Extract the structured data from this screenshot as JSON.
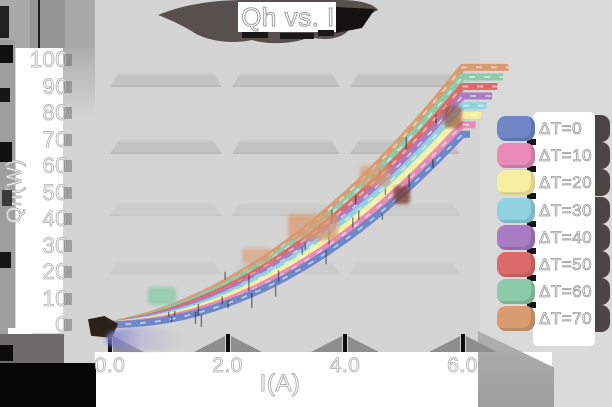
{
  "title": "Qh vs. I",
  "axes": {
    "x": {
      "label": "I(A)",
      "tick_labels": [
        "0.0",
        "2.0",
        "4.0",
        "6.0"
      ]
    },
    "y": {
      "label": "Qh(W)",
      "tick_labels": [
        "0",
        "10",
        "20",
        "30",
        "40",
        "50",
        "60",
        "70",
        "80",
        "90",
        "100"
      ]
    }
  },
  "chart_data": {
    "type": "line",
    "title": "Qh vs. I",
    "xlabel": "I(A)",
    "ylabel": "Qh(W)",
    "xlim": [
      0,
      6.4
    ],
    "ylim": [
      0,
      100
    ],
    "xticks": [
      0.0,
      2.0,
      4.0,
      6.0
    ],
    "yticks": [
      0,
      10,
      20,
      30,
      40,
      50,
      60,
      70,
      80,
      90,
      100
    ],
    "legend_position": "right",
    "grid": "horizontal-bands",
    "x": [
      0,
      0.5,
      1,
      1.5,
      2,
      2.5,
      3,
      3.5,
      4,
      4.5,
      5,
      5.5,
      6
    ],
    "series": [
      {
        "name": "ΔT=0",
        "color": "#6f87c7",
        "values": [
          0,
          0.5,
          2.0,
          4.5,
          8.0,
          12.5,
          18.0,
          24.5,
          32.0,
          40.5,
          50.0,
          60.5,
          72.0
        ]
      },
      {
        "name": "ΔT=10",
        "color": "#e88bb9",
        "values": [
          0,
          0.8,
          2.6,
          5.4,
          9.2,
          14.0,
          19.8,
          26.6,
          34.4,
          43.2,
          53.0,
          63.8,
          75.6
        ]
      },
      {
        "name": "ΔT=20",
        "color": "#f6efa0",
        "values": [
          0,
          1.1,
          3.2,
          6.3,
          10.4,
          15.5,
          21.6,
          28.7,
          36.8,
          45.9,
          56.0,
          67.1,
          79.2
        ]
      },
      {
        "name": "ΔT=30",
        "color": "#90d2e0",
        "values": [
          0,
          1.4,
          3.8,
          7.2,
          11.6,
          17.0,
          23.4,
          30.8,
          39.2,
          48.6,
          59.0,
          70.4,
          82.8
        ]
      },
      {
        "name": "ΔT=40",
        "color": "#a77cc2",
        "values": [
          0,
          1.7,
          4.4,
          8.1,
          12.8,
          18.5,
          25.2,
          32.9,
          41.6,
          51.3,
          62.0,
          73.7,
          86.4
        ]
      },
      {
        "name": "ΔT=50",
        "color": "#dd6a6a",
        "values": [
          0,
          2.0,
          5.0,
          9.0,
          14.0,
          20.0,
          27.0,
          35.0,
          44.0,
          54.0,
          65.0,
          77.0,
          90.0
        ]
      },
      {
        "name": "ΔT=60",
        "color": "#8ccaa9",
        "values": [
          0,
          2.3,
          5.6,
          9.9,
          15.2,
          21.5,
          28.8,
          37.1,
          46.4,
          56.7,
          68.0,
          80.3,
          93.6
        ]
      },
      {
        "name": "ΔT=70",
        "color": "#d89b72",
        "values": [
          0,
          2.6,
          6.2,
          10.8,
          16.4,
          23.0,
          30.6,
          39.2,
          48.8,
          59.4,
          71.0,
          83.6,
          97.2
        ]
      }
    ]
  }
}
